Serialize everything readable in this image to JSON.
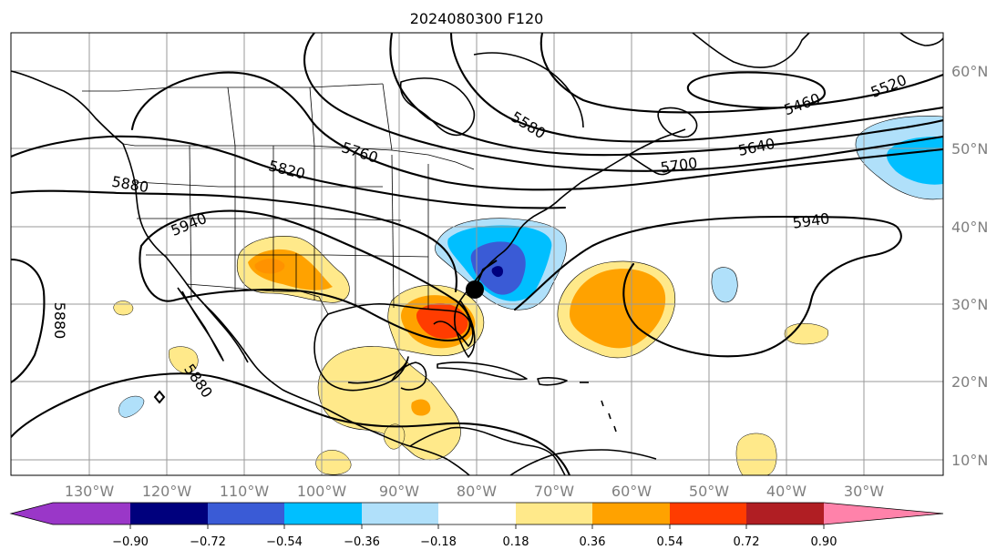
{
  "title": "2024080300 F120",
  "map": {
    "longitude_labels": [
      "130°W",
      "120°W",
      "110°W",
      "100°W",
      "90°W",
      "80°W",
      "70°W",
      "60°W",
      "50°W",
      "40°W",
      "30°W"
    ],
    "latitude_labels": [
      "60°N",
      "50°N",
      "40°N",
      "30°N",
      "20°N",
      "10°N"
    ],
    "contour_labels": [
      "5460",
      "5520",
      "5580",
      "5640",
      "5700",
      "5760",
      "5820",
      "5880",
      "5940",
      "5940",
      "5880",
      "5880"
    ],
    "storm_marker": "black-circle"
  },
  "colorbar": {
    "ticks": [
      "−0.90",
      "−0.72",
      "−0.54",
      "−0.36",
      "−0.18",
      "0.18",
      "0.36",
      "0.54",
      "0.72",
      "0.90"
    ],
    "colors": {
      "under": "#9a37c8",
      "c1": "#00007d",
      "c2": "#3a5bd6",
      "c3": "#00bfff",
      "c4": "#b0e0fa",
      "c5": "#ffffff",
      "c6": "#ffe98a",
      "c7": "#ffa200",
      "c8": "#ff3c00",
      "c9": "#b01e23",
      "over": "#ff82aa"
    }
  }
}
